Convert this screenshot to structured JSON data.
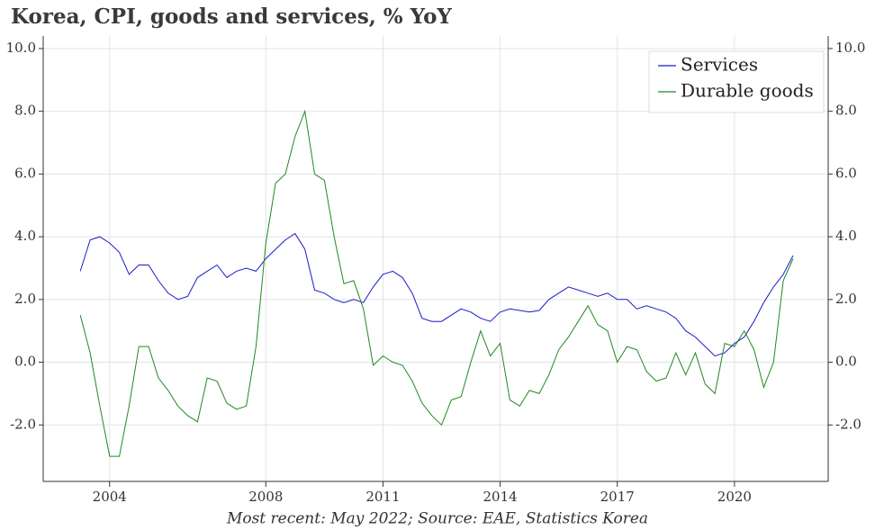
{
  "chart_data": {
    "type": "line",
    "title": "Korea, CPI, goods and services, % YoY",
    "footnote": "Most recent: May 2022; Source: EAE, Statistics Korea",
    "x": [
      2003.25,
      2003.5,
      2003.75,
      2004,
      2004.25,
      2004.5,
      2004.75,
      2005,
      2005.25,
      2005.5,
      2005.75,
      2006,
      2006.25,
      2006.5,
      2006.75,
      2007,
      2007.25,
      2007.5,
      2007.75,
      2008,
      2008.25,
      2008.5,
      2008.75,
      2009,
      2009.25,
      2009.5,
      2009.75,
      2010,
      2010.25,
      2010.5,
      2010.75,
      2011,
      2011.25,
      2011.5,
      2011.75,
      2012,
      2012.25,
      2012.5,
      2012.75,
      2013,
      2013.25,
      2013.5,
      2013.75,
      2014,
      2014.25,
      2014.5,
      2014.75,
      2015,
      2015.25,
      2015.5,
      2015.75,
      2016,
      2016.25,
      2016.5,
      2016.75,
      2017,
      2017.25,
      2017.5,
      2017.75,
      2018,
      2018.25,
      2018.5,
      2018.75,
      2019,
      2019.25,
      2019.5,
      2019.75,
      2020,
      2020.25,
      2020.5,
      2020.75,
      2021,
      2021.25,
      2021.5
    ],
    "series": [
      {
        "name": "Services",
        "color": "#1a1acc",
        "values": [
          2.9,
          3.9,
          4.0,
          3.8,
          3.5,
          2.8,
          3.1,
          3.1,
          2.6,
          2.2,
          2.0,
          2.1,
          2.7,
          2.9,
          3.1,
          2.7,
          2.9,
          3.0,
          2.9,
          3.3,
          3.6,
          3.9,
          4.1,
          3.6,
          2.3,
          2.2,
          2.0,
          1.9,
          2.0,
          1.9,
          2.4,
          2.8,
          2.9,
          2.7,
          2.2,
          1.4,
          1.3,
          1.3,
          1.5,
          1.7,
          1.6,
          1.4,
          1.3,
          1.6,
          1.7,
          1.65,
          1.6,
          1.65,
          2.0,
          2.2,
          2.4,
          2.3,
          2.2,
          2.1,
          2.2,
          2.0,
          2.0,
          1.7,
          1.8,
          1.7,
          1.6,
          1.4,
          1.0,
          0.8,
          0.5,
          0.2,
          0.3,
          0.6,
          0.8,
          1.3,
          1.9,
          2.4,
          2.8,
          3.4
        ]
      },
      {
        "name": "Durable goods",
        "color": "#1f8a1f",
        "values": [
          1.5,
          0.3,
          -1.4,
          -3.0,
          -3.0,
          -1.4,
          0.5,
          0.5,
          -0.5,
          -0.9,
          -1.4,
          -1.7,
          -1.9,
          -0.5,
          -0.6,
          -1.3,
          -1.5,
          -1.4,
          0.5,
          3.8,
          5.7,
          6.0,
          7.2,
          8.0,
          6.0,
          5.8,
          4.0,
          2.5,
          2.6,
          1.7,
          -0.1,
          0.2,
          0.0,
          -0.1,
          -0.6,
          -1.3,
          -1.7,
          -2.0,
          -1.2,
          -1.1,
          0.0,
          1.0,
          0.2,
          0.6,
          -1.2,
          -1.4,
          -0.9,
          -1.0,
          -0.4,
          0.4,
          0.8,
          1.3,
          1.8,
          1.2,
          1.0,
          0.0,
          0.5,
          0.4,
          -0.3,
          -0.6,
          -0.5,
          0.3,
          -0.4,
          0.3,
          -0.7,
          -1.0,
          0.6,
          0.5,
          1.0,
          0.4,
          -0.8,
          0.0,
          2.6,
          3.3
        ]
      }
    ],
    "xlim": [
      2002.3,
      2022.4
    ],
    "xticks": [
      2004,
      2008,
      2011,
      2014,
      2017,
      2020
    ],
    "ylim": [
      -3.8,
      10.4
    ],
    "yticks": [
      {
        "value": -2,
        "label": "-2.0"
      },
      {
        "value": 0,
        "label": "0.0"
      },
      {
        "value": 2,
        "label": "2.0"
      },
      {
        "value": 4,
        "label": "4.0"
      },
      {
        "value": 6,
        "label": "6.0"
      },
      {
        "value": 8,
        "label": "8.0"
      },
      {
        "value": 10,
        "label": "10.0"
      }
    ],
    "grid": true,
    "legend": "upper right"
  }
}
